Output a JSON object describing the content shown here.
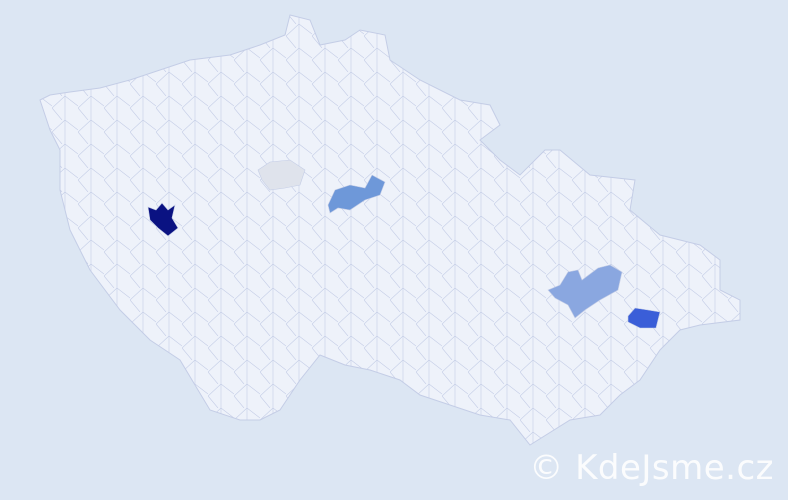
{
  "map": {
    "background": "#dce6f3",
    "land_fill": "#eef2fa",
    "border_color": "#c4cde6",
    "highlighted_regions": [
      {
        "id": "west-district",
        "color": "#0a1282"
      },
      {
        "id": "central-bohemia-district",
        "color": "#dfe3ec"
      },
      {
        "id": "east-bohemia-district",
        "color": "#6e98d9"
      },
      {
        "id": "central-moravia-district",
        "color": "#8aa7e0"
      },
      {
        "id": "east-moravia-district",
        "color": "#3a5ed8"
      }
    ]
  },
  "watermark": {
    "text": "© KdeJsme.cz"
  }
}
